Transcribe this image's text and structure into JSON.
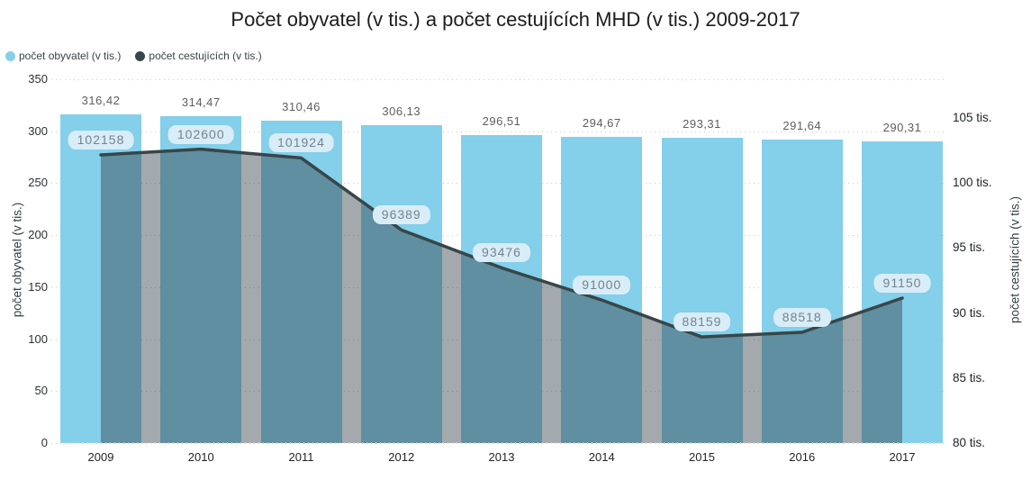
{
  "title": "Počet obyvatel (v tis.) a počet cestujících MHD (v tis.) 2009-2017",
  "legend": [
    {
      "label": "počet obyvatel (v tis.)",
      "color": "#84cfea"
    },
    {
      "label": "počet cestujících (v tis.)",
      "color": "#374649"
    }
  ],
  "chart_data": {
    "type": "combo-bar-area-line",
    "title": "Počet obyvatel (v tis.) a počet cestujících MHD (v tis.) 2009-2017",
    "categories": [
      "2009",
      "2010",
      "2011",
      "2012",
      "2013",
      "2014",
      "2015",
      "2016",
      "2017"
    ],
    "series": [
      {
        "name": "počet obyvatel (v tis.)",
        "type": "bar",
        "axis": "left",
        "color": "#84cfea",
        "values": [
          316.42,
          314.47,
          310.46,
          306.13,
          296.51,
          294.67,
          293.31,
          291.64,
          290.31
        ],
        "data_labels": [
          "316,42",
          "314,47",
          "310,46",
          "306,13",
          "296,51",
          "294,67",
          "293,31",
          "291,64",
          "290,31"
        ]
      },
      {
        "name": "počet cestujících (v tis.)",
        "type": "area-line",
        "axis": "right",
        "color": "#374649",
        "area_fill": "rgba(50,64,70,0.45)",
        "values": [
          102158,
          102600,
          101924,
          96389,
          93476,
          91000,
          88159,
          88518,
          91150
        ],
        "data_labels": [
          "102158",
          "102600",
          "101924",
          "96389",
          "93476",
          "91000",
          "88159",
          "88518",
          "91150"
        ]
      }
    ],
    "left_axis": {
      "title": "počet obyvatel (v tis.)",
      "range": [
        0,
        350
      ],
      "ticks": [
        {
          "label": "350",
          "value": 350
        },
        {
          "label": "300",
          "value": 300
        },
        {
          "label": "250",
          "value": 250
        },
        {
          "label": "200",
          "value": 200
        },
        {
          "label": "150",
          "value": 150
        },
        {
          "label": "100",
          "value": 100
        },
        {
          "label": "50",
          "value": 50
        },
        {
          "label": "0",
          "value": 0
        }
      ]
    },
    "right_axis": {
      "title": "počet cestujících (v tis.)",
      "range": [
        80000,
        105000
      ],
      "ticks": [
        {
          "label": "105 tis.",
          "value": 105000
        },
        {
          "label": "100 tis.",
          "value": 100000
        },
        {
          "label": "95 tis.",
          "value": 95000
        },
        {
          "label": "90 tis.",
          "value": 90000
        },
        {
          "label": "85 tis.",
          "value": 85000
        },
        {
          "label": "80 tis.",
          "value": 80000
        }
      ]
    },
    "grid": "horizontal-dotted",
    "legend_position": "top-left"
  }
}
